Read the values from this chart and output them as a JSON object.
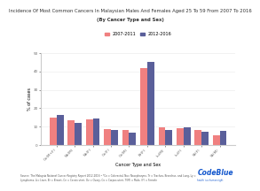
{
  "title_line1": "Incidence Of Most Common Cancers In Malaysian Males And Females Aged 25 To 59 From 2007 To 2016",
  "title_line2": "(By Cancer Type and Sex)",
  "xlabel": "Cancer Type and Sex",
  "ylabel": "% of cases",
  "legend_labels": [
    "2007-2011",
    "2012-2016"
  ],
  "bar_color_1": "#F08080",
  "bar_color_2": "#5A5F9A",
  "categories": [
    "Co(M+F)",
    "Na(M)",
    "Na(F)",
    "Co(F)",
    "Co(M)",
    "Br(F)",
    "Lu(M)",
    "Lu(F)",
    "Sk(F)",
    "Sk(M)"
  ],
  "values_1": [
    15.0,
    13.5,
    14.0,
    8.5,
    8.2,
    42.0,
    9.5,
    9.0,
    8.0,
    5.5
  ],
  "values_2": [
    16.5,
    12.0,
    14.5,
    8.0,
    6.5,
    45.0,
    8.0,
    9.5,
    7.0,
    7.5
  ],
  "ylim": [
    0,
    50
  ],
  "yticks": [
    0,
    10,
    20,
    30,
    40,
    50
  ],
  "background_color": "#FFFFFF",
  "title_fontsize": 3.8,
  "tick_fontsize": 3.0,
  "label_fontsize": 3.5,
  "legend_fontsize": 3.5,
  "footer_text": "Source: The Malaysia National Cancer Registry Report 2012-2016 • *Co = Colorectal, Na= Nasopharynx, Tr = Trachea, Bronchus, and Lung, Ly =\nLymphoma, Li= Liver, Br = Breast, Ce = Cervix uteri, Ov = Ovary, Co = Corpus uteri, T(M) = Male, (F) = Female",
  "codeblue_text": "CodeBlue",
  "codeblue_sub": "health is a human right",
  "bar_width": 0.38,
  "grid_color": "#E8E8E8"
}
